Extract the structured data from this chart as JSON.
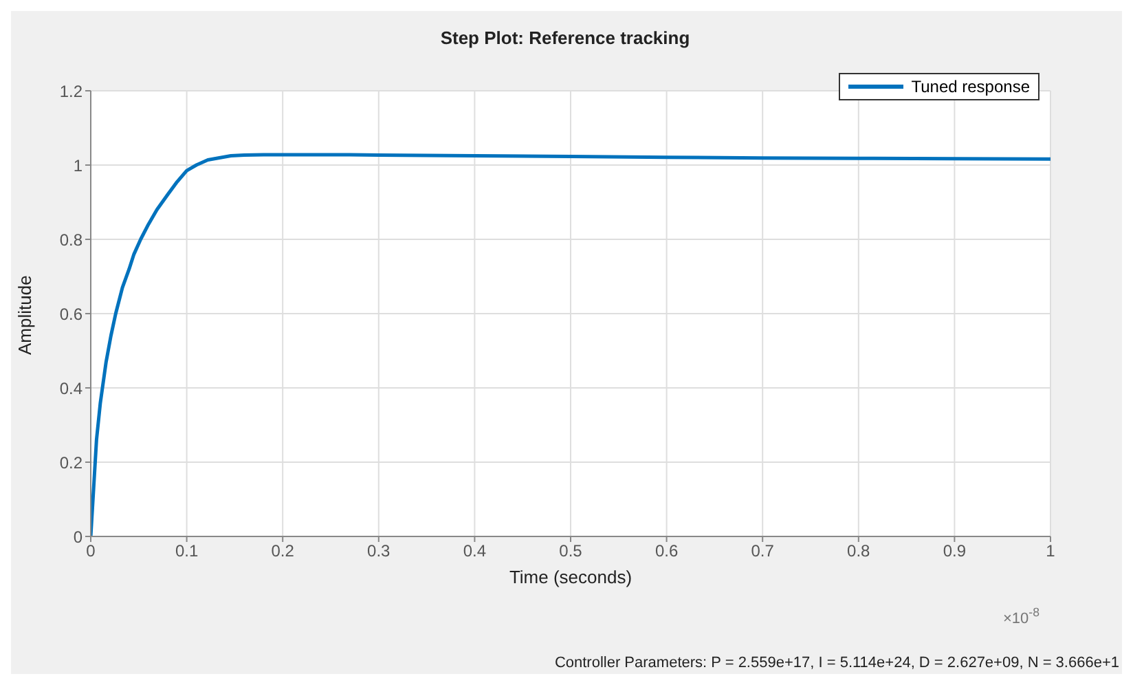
{
  "chart_data": {
    "type": "line",
    "title": "Step Plot: Reference tracking",
    "xlabel": "Time (seconds)",
    "ylabel": "Amplitude",
    "annotations": [
      "×10$^{-8}$",
      "Controller Parameters: P = 2.559e+17, I = 5.114e+24, D = 2.627e+09, N = 3.666e+1"
    ],
    "x": [
      0,
      0.003,
      0.006,
      0.01,
      0.016,
      0.021,
      0.026,
      0.033,
      0.04,
      0.045,
      0.052,
      0.06,
      0.069,
      0.08,
      0.09,
      0.1,
      0.11,
      0.122,
      0.135,
      0.146,
      0.16,
      0.18,
      0.2,
      0.25,
      0.3,
      0.4,
      0.5,
      0.6,
      0.7,
      0.8,
      0.9,
      1
    ],
    "series": [
      {
        "name": "Tuned response",
        "color": "#0072bd",
        "values": [
          0,
          0.13,
          0.26,
          0.36,
          0.47,
          0.54,
          0.6,
          0.67,
          0.72,
          0.76,
          0.8,
          0.84,
          0.88,
          0.92,
          0.955,
          0.985,
          1.0,
          1.014,
          1.02,
          1.025,
          1.027,
          1.028,
          1.028,
          1.028,
          1.027,
          1.025,
          1.023,
          1.021,
          1.019,
          1.018,
          1.017,
          1.016
        ]
      }
    ],
    "xlim": [
      0,
      1
    ],
    "xticks": [
      0,
      0.1,
      0.2,
      0.3,
      0.4,
      0.5,
      0.6,
      0.7,
      0.8,
      0.9,
      1
    ],
    "ylim": [
      0,
      1.2
    ],
    "yticks": [
      0,
      0.2,
      0.4,
      0.6,
      0.8,
      1,
      1.2
    ],
    "grid": true,
    "legend": "top right",
    "marker": "none",
    "line_style": "solid"
  }
}
